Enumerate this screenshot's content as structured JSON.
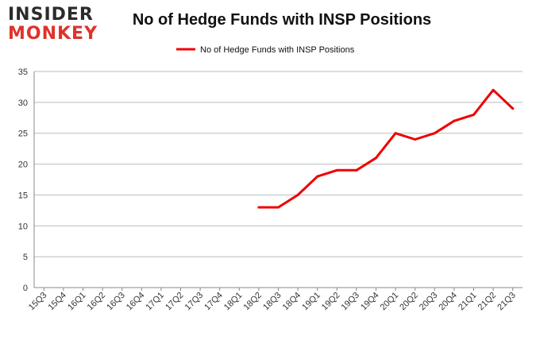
{
  "logo": {
    "line1": "INSIDER",
    "line2": "MONKEY"
  },
  "colors": {
    "series": "#ee0000",
    "grid": "#bbbbbb",
    "axis": "#888888",
    "logo_red": "#e0322b"
  },
  "chart_data": {
    "type": "line",
    "title": "No of Hedge Funds with INSP Positions",
    "xlabel": "",
    "ylabel": "",
    "ylim": [
      0,
      35
    ],
    "yticks": [
      0,
      5,
      10,
      15,
      20,
      25,
      30,
      35
    ],
    "grid": true,
    "legend_position": "top-center",
    "categories": [
      "15Q3",
      "15Q4",
      "16Q1",
      "16Q2",
      "16Q3",
      "16Q4",
      "17Q1",
      "17Q2",
      "17Q3",
      "17Q4",
      "18Q1",
      "18Q2",
      "18Q3",
      "18Q4",
      "19Q1",
      "19Q2",
      "19Q3",
      "19Q4",
      "20Q1",
      "20Q2",
      "20Q3",
      "20Q4",
      "21Q1",
      "21Q2",
      "21Q3"
    ],
    "series": [
      {
        "name": "No of Hedge Funds with INSP Positions",
        "values": [
          null,
          null,
          null,
          null,
          null,
          null,
          null,
          null,
          null,
          null,
          null,
          13,
          13,
          15,
          18,
          19,
          19,
          21,
          25,
          24,
          25,
          27,
          28,
          32,
          29
        ]
      }
    ]
  }
}
